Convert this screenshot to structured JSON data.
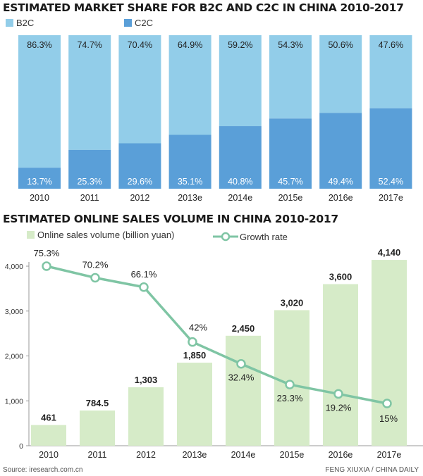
{
  "chart_data": [
    {
      "type": "bar",
      "stacked": true,
      "title": "ESTIMATED MARKET SHARE FOR B2C AND C2C IN CHINA 2010-2017",
      "categories": [
        "2010",
        "2011",
        "2012",
        "2013e",
        "2014e",
        "2015e",
        "2016e",
        "2017e"
      ],
      "series": [
        {
          "name": "B2C",
          "values": [
            86.3,
            74.7,
            70.4,
            64.9,
            59.2,
            54.3,
            50.6,
            47.6
          ],
          "labels": [
            "86.3%",
            "74.7%",
            "70.4%",
            "64.9%",
            "59.2%",
            "54.3%",
            "50.6%",
            "47.6%"
          ],
          "color": "#92cde9"
        },
        {
          "name": "C2C",
          "values": [
            13.7,
            25.3,
            29.6,
            35.1,
            40.8,
            45.7,
            49.4,
            52.4
          ],
          "labels": [
            "13.7%",
            "25.3%",
            "29.6%",
            "35.1%",
            "40.8%",
            "45.7%",
            "49.4%",
            "52.4%"
          ],
          "color": "#5a9fd8"
        }
      ],
      "ylim": [
        0,
        100
      ],
      "legend": "top-left"
    },
    {
      "type": "bar",
      "title": "ESTIMATED ONLINE SALES VOLUME IN CHINA 2010-2017",
      "categories": [
        "2010",
        "2011",
        "2012",
        "2013e",
        "2014e",
        "2015e",
        "2016e",
        "2017e"
      ],
      "series": [
        {
          "name": "Online sales volume (billion yuan)",
          "type": "bar",
          "values": [
            461,
            784.5,
            1303,
            1850,
            2450,
            3020,
            3600,
            4140
          ],
          "labels": [
            "461",
            "784.5",
            "1,303",
            "1,850",
            "2,450",
            "3,020",
            "3,600",
            "4,140"
          ],
          "color": "#d6ebc8"
        },
        {
          "name": "Growth rate",
          "type": "line",
          "values": [
            75.3,
            70.2,
            66.1,
            42,
            32.4,
            23.3,
            19.2,
            15
          ],
          "labels": [
            "75.3%",
            "70.2%",
            "66.1%",
            "42%",
            "32.4%",
            "23.3%",
            "19.2%",
            "15%"
          ],
          "color": "#7fc5a4"
        }
      ],
      "yticks": [
        "0",
        "1,000",
        "2,000",
        "3,000",
        "4,000"
      ],
      "ytick_values": [
        0,
        1000,
        2000,
        3000,
        4000
      ],
      "ylim": [
        0,
        4000
      ],
      "growth_axis_hidden": true,
      "legend": "top-left"
    }
  ],
  "footer": {
    "source": "Source: iresearch.com.cn",
    "credit": "FENG XIUXIA / CHINA DAILY"
  }
}
